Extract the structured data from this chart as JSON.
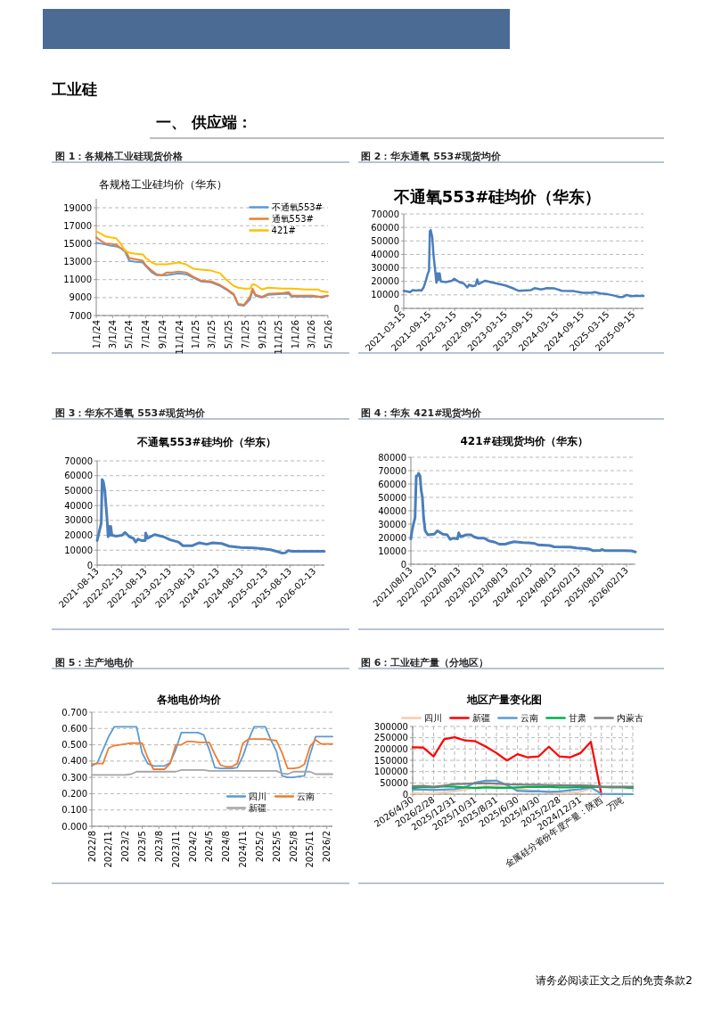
{
  "chart_data": [
    {
      "type": "other",
      "title": "工业硅",
      "subtitle": "一、 供应端：",
      "annotations": [
        "请务必阅读正文之后的免责条款2"
      ]
    },
    {
      "type": "line",
      "title": "图 1：各规格工业硅现货价格",
      "subtitle": "各规格工业硅均价（华东）",
      "x": [
        "2024-01-01",
        "2024-01-19",
        "2024-02-05",
        "2024-02-21",
        "2024-03-14",
        "2024-03-31",
        "2024-04-16",
        "2024-05-01",
        "2024-05-19",
        "2024-06-20",
        "2024-07-01",
        "2024-07-23",
        "2024-08-09",
        "2024-08-30",
        "2024-09-16",
        "2024-10-08",
        "2024-10-29",
        "2024-11-26",
        "2024-12-23",
        "2025-01-19",
        "2025-02-26",
        "2025-03-31",
        "2025-04-22",
        "2025-05-20",
        "2025-06-05",
        "2025-06-27",
        "2025-07-19",
        "2025-07-28",
        "2025-08-08",
        "2025-09-01",
        "2025-09-22",
        "2025-11-16",
        "2025-12-08",
        "2025-12-19",
        "2026-02-11",
        "2026-03-05",
        "2026-03-27",
        "2026-04-07",
        "2026-04-30"
      ],
      "series": [
        {
          "name": "不通氧553#",
          "color": "#5b9bd5",
          "values": [
            15100,
            15000,
            14900,
            14800,
            14700,
            14500,
            14100,
            13100,
            13000,
            12900,
            12500,
            11800,
            11500,
            11500,
            11500,
            11600,
            11700,
            11600,
            11200,
            10800,
            10700,
            10300,
            9900,
            9300,
            8200,
            8100,
            8800,
            9800,
            9200,
            9000,
            9300,
            9400,
            9400,
            9100,
            9100,
            9100,
            9100,
            9000,
            9200
          ]
        },
        {
          "name": "通氧553#",
          "color": "#ed7d31",
          "values": [
            15700,
            15300,
            15000,
            15000,
            14900,
            14500,
            14300,
            13400,
            13300,
            13100,
            12600,
            12000,
            11600,
            11500,
            11800,
            11800,
            11900,
            11800,
            11300,
            10900,
            10800,
            10400,
            10000,
            9400,
            8300,
            8200,
            9100,
            10000,
            9300,
            9100,
            9400,
            9500,
            9600,
            9200,
            9200,
            9200,
            9100,
            9100,
            9200
          ]
        },
        {
          "name": "421#",
          "color": "#ffc000",
          "values": [
            16400,
            16100,
            15800,
            15700,
            15600,
            15000,
            14200,
            14000,
            13900,
            13800,
            13400,
            12900,
            12700,
            12700,
            12700,
            12800,
            12900,
            12700,
            12200,
            12100,
            12000,
            11700,
            11000,
            10300,
            10100,
            10000,
            10000,
            10500,
            10400,
            9900,
            10100,
            10000,
            10000,
            10000,
            9900,
            9900,
            9900,
            9700,
            9600
          ]
        }
      ],
      "xlim": [
        "2024-01-01",
        "2026-05-01"
      ],
      "xticks": [
        {
          "value": "2024-01-01",
          "label": "1/1/24"
        },
        {
          "value": "2024-03-01",
          "label": "3/1/24"
        },
        {
          "value": "2024-05-01",
          "label": "5/1/24"
        },
        {
          "value": "2024-07-01",
          "label": "7/1/24"
        },
        {
          "value": "2024-09-01",
          "label": "9/1/24"
        },
        {
          "value": "2024-11-01",
          "label": "11/1/24"
        },
        {
          "value": "2025-01-01",
          "label": "1/1/25"
        },
        {
          "value": "2025-03-01",
          "label": "3/1/25"
        },
        {
          "value": "2025-05-01",
          "label": "5/1/25"
        },
        {
          "value": "2025-07-01",
          "label": "7/1/25"
        },
        {
          "value": "2025-09-01",
          "label": "9/1/25"
        },
        {
          "value": "2025-11-01",
          "label": "11/1/25"
        },
        {
          "value": "2026-01-01",
          "label": "1/1/26"
        },
        {
          "value": "2026-03-01",
          "label": "3/1/26"
        },
        {
          "value": "2026-05-01",
          "label": "5/1/26"
        }
      ],
      "ylim": [
        7000,
        20000
      ],
      "yticks": [
        7000,
        9000,
        11000,
        13000,
        15000,
        17000,
        19000
      ],
      "grid": "y",
      "legend": "top right"
    },
    {
      "type": "line",
      "title": "图 2：华东通氧 553#现货均价",
      "subtitle": "不通氧553#硅均价（华东）",
      "series": [
        {
          "color": "#4a7ebb",
          "x": [
            "2021-03-15",
            "2021-04-09",
            "2021-04-30",
            "2021-05-18",
            "2021-06-12",
            "2021-07-03",
            "2021-07-20",
            "2021-08-04",
            "2021-08-19",
            "2021-09-01",
            "2021-09-12",
            "2021-09-18",
            "2021-09-24",
            "2021-10-05",
            "2021-10-14",
            "2021-10-24",
            "2021-11-04",
            "2021-11-12",
            "2021-11-18",
            "2021-11-27",
            "2021-12-06",
            "2022-01-11",
            "2022-02-23",
            "2022-03-12",
            "2022-04-17",
            "2022-05-19",
            "2022-06-13",
            "2022-06-26",
            "2022-07-22",
            "2022-08-12",
            "2022-08-23",
            "2022-09-02",
            "2022-10-19",
            "2022-12-18",
            "2023-03-13",
            "2023-05-16",
            "2023-06-17",
            "2023-09-10",
            "2023-10-08",
            "2023-11-24",
            "2024-01-05",
            "2024-02-28",
            "2024-04-21",
            "2024-07-15",
            "2024-09-17",
            "2024-11-20",
            "2024-12-11",
            "2025-01-23",
            "2025-03-15",
            "2025-05-01",
            "2025-06-02",
            "2025-07-03",
            "2025-07-29",
            "2025-08-26",
            "2025-10-08",
            "2025-11-26"
          ],
          "values": [
            13000,
            12500,
            12000,
            13500,
            13200,
            13500,
            13200,
            15500,
            20000,
            25000,
            28000,
            57000,
            58000,
            53000,
            40000,
            30000,
            19000,
            26000,
            21000,
            26000,
            20000,
            19500,
            20500,
            22000,
            19500,
            18500,
            15500,
            17500,
            16500,
            17000,
            21500,
            18000,
            20500,
            19000,
            17000,
            14500,
            13000,
            13500,
            15000,
            14000,
            15000,
            14800,
            13000,
            12800,
            11500,
            11500,
            12000,
            11000,
            10500,
            9500,
            8500,
            8500,
            10000,
            9000,
            9300,
            9300
          ]
        }
      ],
      "xlim": [
        "2021-03-15",
        "2025-11-26"
      ],
      "xticks": [
        {
          "value": "2021-03-15",
          "label": "2021-03-15"
        },
        {
          "value": "2021-09-15",
          "label": "2021-09-15"
        },
        {
          "value": "2022-03-15",
          "label": "2022-03-15"
        },
        {
          "value": "2022-09-15",
          "label": "2022-09-15"
        },
        {
          "value": "2023-03-15",
          "label": "2023-03-15"
        },
        {
          "value": "2023-09-15",
          "label": "2023-09-15"
        },
        {
          "value": "2024-03-15",
          "label": "2024-03-15"
        },
        {
          "value": "2024-09-15",
          "label": "2024-09-15"
        },
        {
          "value": "2025-03-15",
          "label": "2025-03-15"
        },
        {
          "value": "2025-09-15",
          "label": "2025-09-15"
        }
      ],
      "ylim": [
        0,
        70000
      ],
      "yticks": [
        0,
        10000,
        20000,
        30000,
        40000,
        50000,
        60000,
        70000
      ],
      "grid": "y"
    },
    {
      "type": "line",
      "title": "图 3：华东不通氧 553#现货均价",
      "subtitle": "不通氧553#硅均价（华东）",
      "series": [
        {
          "color": "#4a7ebb",
          "x": [
            "2021-08-13",
            "2021-08-22",
            "2021-09-02",
            "2021-09-13",
            "2021-09-20",
            "2021-09-29",
            "2021-10-10",
            "2021-10-19",
            "2021-10-28",
            "2021-11-04",
            "2021-11-11",
            "2021-11-18",
            "2021-11-24",
            "2021-12-03",
            "2022-01-04",
            "2022-02-18",
            "2022-03-12",
            "2022-04-15",
            "2022-05-14",
            "2022-06-01",
            "2022-06-19",
            "2022-07-14",
            "2022-08-12",
            "2022-08-16",
            "2022-08-30",
            "2022-10-23",
            "2022-12-30",
            "2023-02-17",
            "2023-04-21",
            "2023-05-25",
            "2023-08-01",
            "2023-09-26",
            "2023-11-21",
            "2024-01-05",
            "2024-03-13",
            "2024-05-08",
            "2024-08-06",
            "2024-11-15",
            "2025-01-11",
            "2025-03-19",
            "2025-05-14",
            "2025-06-17",
            "2025-07-10",
            "2025-08-01",
            "2025-08-24",
            "2025-12-14",
            "2026-04-30"
          ],
          "values": [
            16500,
            20000,
            24000,
            28000,
            57500,
            56000,
            50000,
            40000,
            30000,
            19000,
            26000,
            20000,
            26000,
            20000,
            19500,
            20000,
            22000,
            19000,
            18000,
            15500,
            17500,
            16500,
            16500,
            21500,
            18000,
            20500,
            19000,
            17000,
            15500,
            13000,
            13000,
            15000,
            14000,
            15000,
            14500,
            12700,
            11800,
            11500,
            11000,
            10300,
            9000,
            8000,
            8300,
            9800,
            9300,
            9300,
            9200
          ]
        }
      ],
      "xlim": [
        "2021-08-13",
        "2026-05-01"
      ],
      "xticks": [
        {
          "value": "2021-08-13",
          "label": "2021-08-13"
        },
        {
          "value": "2022-02-13",
          "label": "2022-02-13"
        },
        {
          "value": "2022-08-13",
          "label": "2022-08-13"
        },
        {
          "value": "2023-02-13",
          "label": "2023-02-13"
        },
        {
          "value": "2023-08-13",
          "label": "2023-08-13"
        },
        {
          "value": "2024-02-13",
          "label": "2024-02-13"
        },
        {
          "value": "2024-08-13",
          "label": "2024-08-13"
        },
        {
          "value": "2025-02-13",
          "label": "2025-02-13"
        },
        {
          "value": "2025-08-13",
          "label": "2025-08-13"
        },
        {
          "value": "2026-02-13",
          "label": "2026-02-13"
        }
      ],
      "ylim": [
        0,
        70000
      ],
      "yticks": [
        0,
        10000,
        20000,
        30000,
        40000,
        50000,
        60000,
        70000
      ],
      "grid": "y"
    },
    {
      "type": "line",
      "title": "图 4：华东 421#现货均价",
      "subtitle": "421#硅现货均价（华东）",
      "series": [
        {
          "color": "#4a7ebb",
          "x": [
            "2021-08-13",
            "2021-08-22",
            "2021-09-02",
            "2021-09-14",
            "2021-09-23",
            "2021-10-02",
            "2021-10-11",
            "2021-10-22",
            "2021-10-31",
            "2021-11-09",
            "2021-11-18",
            "2021-11-30",
            "2021-12-20",
            "2022-02-08",
            "2022-03-03",
            "2022-04-13",
            "2022-05-17",
            "2022-06-09",
            "2022-07-01",
            "2022-08-04",
            "2022-08-13",
            "2022-08-27",
            "2022-10-11",
            "2022-11-14",
            "2022-12-07",
            "2023-01-10",
            "2023-02-24",
            "2023-03-30",
            "2023-05-15",
            "2023-06-18",
            "2023-08-02",
            "2023-09-05",
            "2023-10-09",
            "2023-12-16",
            "2024-01-30",
            "2024-03-15",
            "2024-04-07",
            "2024-07-07",
            "2024-08-10",
            "2024-12-13",
            "2025-01-27",
            "2025-04-28",
            "2025-06-01",
            "2025-07-28",
            "2025-08-08",
            "2025-08-31",
            "2026-01-25",
            "2026-03-23",
            "2026-04-22"
          ],
          "values": [
            19000,
            25000,
            30000,
            35000,
            66000,
            66000,
            68000,
            66000,
            55000,
            50000,
            35000,
            25000,
            22000,
            22500,
            25000,
            22500,
            22000,
            18500,
            19500,
            19000,
            23500,
            20500,
            22000,
            22000,
            20500,
            19500,
            19500,
            17500,
            16500,
            15000,
            15000,
            16000,
            16800,
            16200,
            16000,
            15500,
            14500,
            14000,
            13000,
            12800,
            12200,
            11500,
            10200,
            10300,
            11000,
            10200,
            10200,
            10000,
            9200
          ]
        }
      ],
      "xlim": [
        "2021-08-13",
        "2026-04-22"
      ],
      "xticks": [
        {
          "value": "2021-08-13",
          "label": "2021/08/13"
        },
        {
          "value": "2022-02-13",
          "label": "2022/02/13"
        },
        {
          "value": "2022-08-13",
          "label": "2022/08/13"
        },
        {
          "value": "2023-02-13",
          "label": "2023/02/13"
        },
        {
          "value": "2023-08-13",
          "label": "2023/08/13"
        },
        {
          "value": "2024-02-13",
          "label": "2024/02/13"
        },
        {
          "value": "2024-08-13",
          "label": "2024/08/13"
        },
        {
          "value": "2025-02-13",
          "label": "2025/02/13"
        },
        {
          "value": "2025-08-13",
          "label": "2025/08/13"
        },
        {
          "value": "2026-02-13",
          "label": "2026/02/13"
        }
      ],
      "ylim": [
        0,
        80000
      ],
      "yticks": [
        0,
        10000,
        20000,
        30000,
        40000,
        50000,
        60000,
        70000,
        80000
      ],
      "grid": "y"
    },
    {
      "type": "line",
      "title": "图 5：主产地电价",
      "subtitle": "各地电价均价",
      "categories": [
        "2022/8",
        null,
        null,
        "2022/11",
        null,
        null,
        "2023/2",
        null,
        null,
        "2023/5",
        null,
        null,
        "2023/8",
        null,
        null,
        "2023/11",
        null,
        null,
        "2024/2",
        null,
        null,
        "2024/5",
        null,
        null,
        "2024/8",
        null,
        null,
        "2024/11",
        null,
        null,
        "2025/2",
        null,
        null,
        "2025/5",
        null,
        null,
        "2025/8",
        null,
        null,
        "2025/11",
        null,
        null,
        "2026/2",
        null
      ],
      "series": [
        {
          "name": "四川",
          "color": "#5b9bd5",
          "values": [
            0.37,
            0.39,
            0.47,
            0.55,
            0.61,
            0.61,
            0.61,
            0.61,
            0.61,
            0.45,
            0.385,
            0.37,
            0.37,
            0.37,
            0.39,
            0.47,
            0.575,
            0.575,
            0.575,
            0.575,
            0.56,
            0.47,
            0.36,
            0.355,
            0.355,
            0.355,
            0.36,
            0.43,
            0.53,
            0.61,
            0.61,
            0.61,
            0.53,
            0.46,
            0.31,
            0.3,
            0.3,
            0.305,
            0.31,
            0.44,
            0.55,
            0.55,
            0.55,
            0.55
          ]
        },
        {
          "name": "云南",
          "color": "#ed7d31",
          "values": [
            0.38,
            0.385,
            0.385,
            0.48,
            0.495,
            0.5,
            0.505,
            0.51,
            0.51,
            0.51,
            0.42,
            0.35,
            0.35,
            0.35,
            0.385,
            0.5,
            0.5,
            0.52,
            0.52,
            0.515,
            0.515,
            0.515,
            0.44,
            0.375,
            0.365,
            0.365,
            0.385,
            0.51,
            0.535,
            0.535,
            0.535,
            0.535,
            0.53,
            0.525,
            0.45,
            0.355,
            0.355,
            0.36,
            0.38,
            0.49,
            0.53,
            0.505,
            0.505,
            0.505
          ]
        },
        {
          "name": "新疆",
          "color": "#a5a5a5",
          "values": [
            0.315,
            0.315,
            0.315,
            0.315,
            0.315,
            0.315,
            0.315,
            0.32,
            0.335,
            0.335,
            0.335,
            0.335,
            0.335,
            0.335,
            0.335,
            0.335,
            0.345,
            0.345,
            0.345,
            0.345,
            0.345,
            0.34,
            0.34,
            0.34,
            0.34,
            0.34,
            0.34,
            0.34,
            0.34,
            0.34,
            0.34,
            0.34,
            0.34,
            0.34,
            0.325,
            0.32,
            0.335,
            0.335,
            0.335,
            0.335,
            0.32,
            0.32,
            0.32,
            0.32
          ]
        }
      ],
      "ylim": [
        0,
        0.7
      ],
      "yticks": [
        {
          "value": 0,
          "label": "0.000"
        },
        {
          "value": 0.1,
          "label": "0.100"
        },
        {
          "value": 0.2,
          "label": "0.200"
        },
        {
          "value": 0.3,
          "label": "0.300"
        },
        {
          "value": 0.4,
          "label": "0.400"
        },
        {
          "value": 0.5,
          "label": "0.500"
        },
        {
          "value": 0.6,
          "label": "0.600"
        },
        {
          "value": 0.7,
          "label": "0.700"
        }
      ],
      "grid": "y",
      "legend": "bottom right"
    },
    {
      "type": "line",
      "title": "图 6：工业硅产量（分地区）",
      "subtitle": "地区产量变化图",
      "categories": [
        "2026/4/30",
        null,
        "2026/2/28",
        null,
        "2025/12/31",
        null,
        "2025/10/31",
        null,
        "2025/8/31",
        null,
        "2025/6/30",
        null,
        "2025/4/30",
        null,
        "2025/2/28",
        null,
        "2024/12/31",
        null,
        "金属硅分省份年度产量：陕西",
        null,
        "万吨",
        null
      ],
      "series": [
        {
          "name": "四川",
          "color": "#f8cbad",
          "values": [
            5000,
            3000,
            3000,
            8000,
            12000,
            20000,
            30000,
            35000,
            35000,
            30000,
            25000,
            18000,
            12000,
            8000,
            5000,
            5000,
            10000,
            25000,
            null,
            null,
            null,
            null
          ]
        },
        {
          "name": "新疆",
          "color": "#ff0000",
          "values": [
            208000,
            207000,
            167000,
            243000,
            252000,
            238000,
            234000,
            210000,
            182000,
            149000,
            177000,
            163000,
            167000,
            210000,
            167000,
            163000,
            182000,
            232000,
            0,
            null,
            null,
            null
          ]
        },
        {
          "name": "云南",
          "color": "#5b9bd5",
          "values": [
            20000,
            20000,
            18000,
            20000,
            22000,
            30000,
            52000,
            60000,
            60000,
            40000,
            15000,
            12000,
            13000,
            10000,
            12000,
            17000,
            22000,
            30000,
            2000,
            1000,
            1000,
            0
          ]
        },
        {
          "name": "甘肃",
          "color": "#00b050",
          "values": [
            27000,
            32000,
            30000,
            35000,
            33000,
            30000,
            27000,
            30000,
            28000,
            28000,
            30000,
            32000,
            33000,
            32000,
            30000,
            30000,
            32000,
            33000,
            32000,
            30000,
            30000,
            27000
          ]
        },
        {
          "name": "内蒙古",
          "color": "#7f7f7f",
          "values": [
            35000,
            37000,
            33000,
            38000,
            45000,
            46000,
            48000,
            49000,
            47000,
            44000,
            43000,
            42000,
            42000,
            40000,
            40000,
            39000,
            39000,
            38000,
            34000,
            33000,
            33000,
            33000
          ]
        }
      ],
      "ylim": [
        0,
        300000
      ],
      "yticks": [
        0,
        50000,
        100000,
        150000,
        200000,
        250000,
        300000
      ],
      "grid": true,
      "legend": "top"
    }
  ]
}
